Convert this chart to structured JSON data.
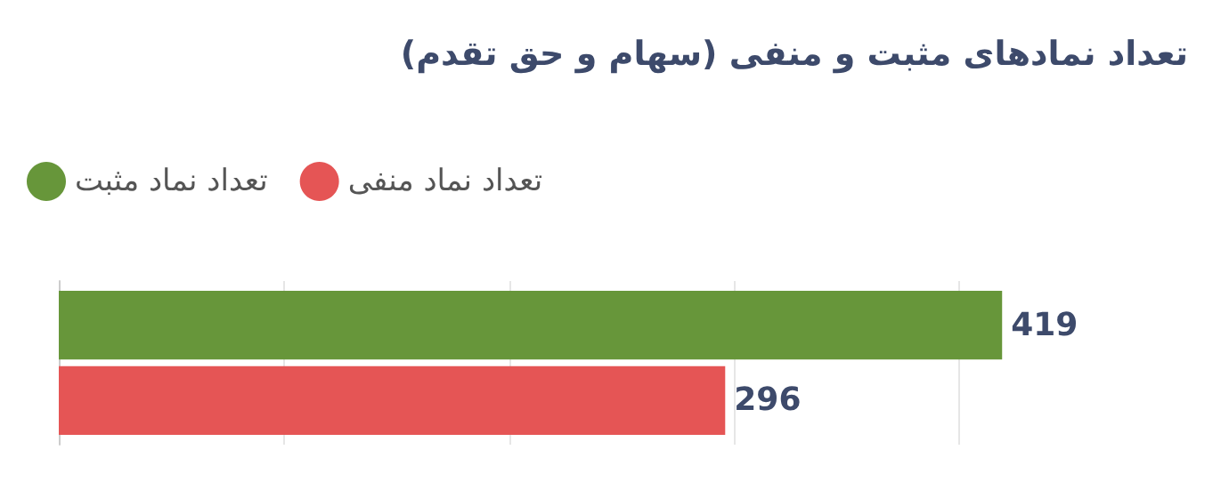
{
  "chart_data": {
    "type": "bar",
    "orientation": "horizontal",
    "title": "تعداد نمادهای مثبت و منفی (سهام و حق تقدم)",
    "categories": [
      null
    ],
    "series": [
      {
        "name": "تعداد نماد مثبت",
        "color": "#67963a",
        "values": [
          419
        ]
      },
      {
        "name": "تعداد نماد منفی",
        "color": "#e55555",
        "values": [
          296
        ]
      }
    ],
    "xticks": [
      {
        "value": 0,
        "label": null
      },
      {
        "value": 100,
        "label": null
      },
      {
        "value": 200,
        "label": null
      },
      {
        "value": 300,
        "label": null
      },
      {
        "value": 400,
        "label": null
      }
    ],
    "grid": "x",
    "legend": "top left",
    "data_labels": true
  }
}
